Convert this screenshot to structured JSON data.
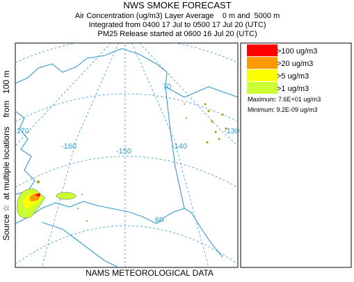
{
  "header": {
    "title": "NWS SMOKE FORECAST",
    "lines": [
      "Air Concentration (ug/m3) Layer Average    0 m and  5000 m",
      "Integrated from 0400 17 Jul to 0500 17 Jul 20 (UTC)",
      "PM25 Release started at 0600 16 Jul 20 (UTC)"
    ]
  },
  "side_label": "Source ☆  at multiple locations    from   100 m",
  "footer": "NAMS METEOROLOGICAL DATA",
  "legend": {
    "items": [
      {
        "label": ">100 ug/m3",
        "color": "#ff0000"
      },
      {
        "label": ">20 ug/m3",
        "color": "#ff9900"
      },
      {
        "label": ">5 ug/m3",
        "color": "#ffff00"
      },
      {
        "label": ">1 ug/m3",
        "color": "#ccff33"
      }
    ],
    "maximum": "Maximum: 7.6E+01 ug/m3",
    "minimum": "Minimum: 9.2E-09 ug/m3"
  },
  "map": {
    "grid_labels": [
      "-170",
      "-160",
      "-150",
      "-140",
      "-130",
      "70",
      "60"
    ]
  }
}
